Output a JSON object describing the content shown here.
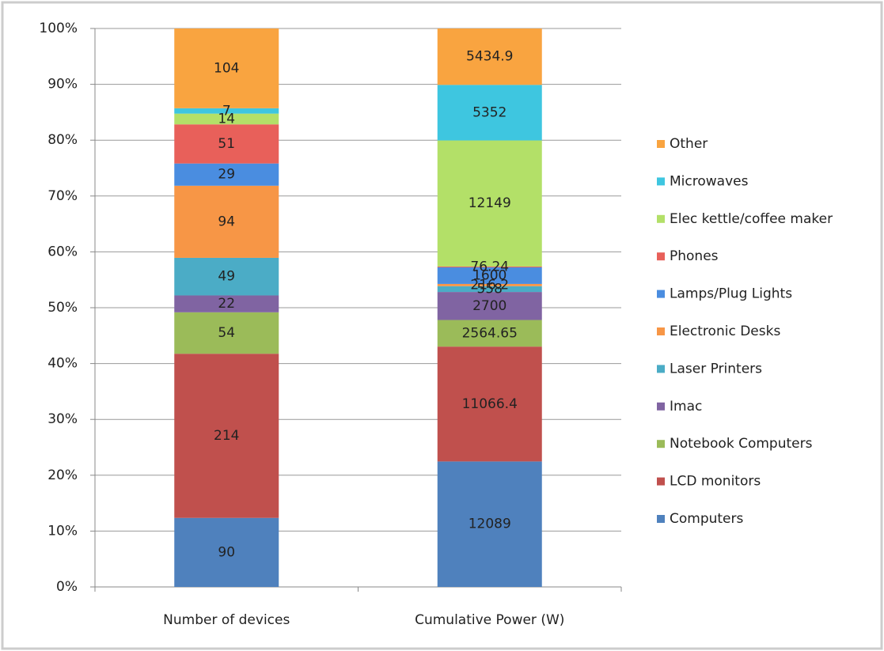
{
  "chart_data": {
    "type": "bar",
    "stacking": "percent",
    "categories": [
      "Number of devices",
      "Cumulative Power (W)"
    ],
    "series": [
      {
        "name": "Computers",
        "color": "#4f81bd",
        "values": [
          90,
          12089
        ]
      },
      {
        "name": "LCD monitors",
        "color": "#c0504d",
        "values": [
          214,
          11066.4
        ]
      },
      {
        "name": "Notebook Computers",
        "color": "#9bbb59",
        "values": [
          54,
          2564.65
        ]
      },
      {
        "name": "Imac",
        "color": "#8064a2",
        "values": [
          22,
          2700
        ]
      },
      {
        "name": "Laser Printers",
        "color": "#4bacc6",
        "values": [
          49,
          558
        ]
      },
      {
        "name": "Electronic Desks",
        "color": "#f79646",
        "values": [
          94,
          216.2
        ]
      },
      {
        "name": "Lamps/Plug Lights",
        "color": "#4a8de0",
        "values": [
          29,
          1600
        ]
      },
      {
        "name": "Phones",
        "color": "#e8605a",
        "values": [
          51,
          76.24
        ]
      },
      {
        "name": "Elec kettle/coffee maker",
        "color": "#b3e068",
        "values": [
          14,
          12149
        ]
      },
      {
        "name": "Microwaves",
        "color": "#3ec6e0",
        "values": [
          7,
          5352
        ]
      },
      {
        "name": "Other",
        "color": "#f9a440",
        "values": [
          104,
          5434.9
        ]
      }
    ],
    "ylim": [
      0,
      100
    ],
    "yticks": [
      {
        "value": 0,
        "label": "0%"
      },
      {
        "value": 10,
        "label": "10%"
      },
      {
        "value": 20,
        "label": "20%"
      },
      {
        "value": 30,
        "label": "30%"
      },
      {
        "value": 40,
        "label": "40%"
      },
      {
        "value": 50,
        "label": "50%"
      },
      {
        "value": 60,
        "label": "60%"
      },
      {
        "value": 70,
        "label": "70%"
      },
      {
        "value": 80,
        "label": "80%"
      },
      {
        "value": 90,
        "label": "90%"
      },
      {
        "value": 100,
        "label": "100%"
      }
    ],
    "grid": true,
    "legend": "right"
  }
}
